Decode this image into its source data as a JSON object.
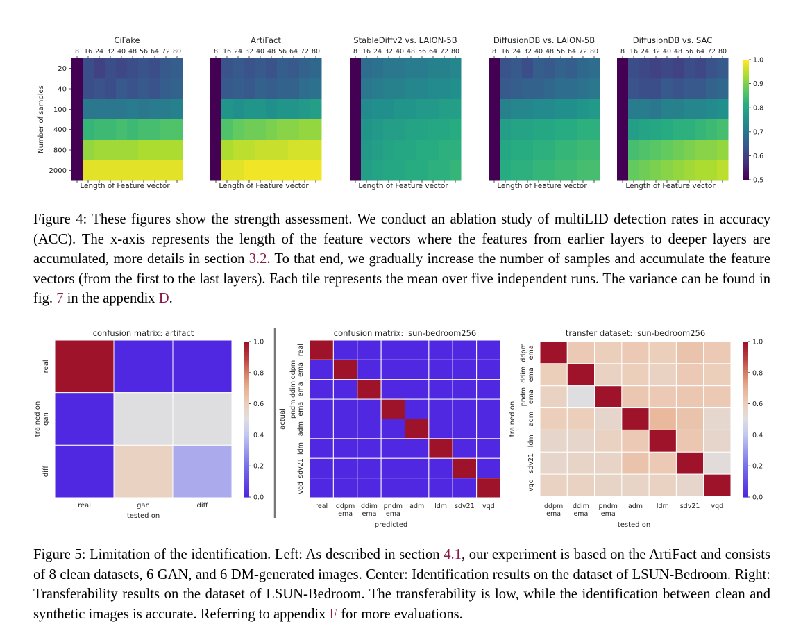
{
  "colors": {
    "link": "#8b1a4a",
    "divider": "#777777"
  },
  "figure4": {
    "colormap": "viridis",
    "y_axis_label": "Number of samples",
    "x_axis_label": "Length of Feature vector",
    "colorbar_ticks": [
      "1.0",
      "0.9",
      "0.8",
      "0.7",
      "0.6",
      "0.5"
    ],
    "caption": {
      "text1": "Figure 4: These figures show the strength assessment. We conduct an ablation study of multiLID detection rates in accuracy (ACC). The x-axis represents the length of the feature vectors where the features from earlier layers to deeper layers are accumulated, more details in section ",
      "ref1": "3.2",
      "text2": ". To that end, we gradually increase the number of samples and accumulate the feature vectors (from the first to the last layers). Each tile represents the mean over five independent runs. The variance can be found in fig. ",
      "ref2": "7",
      "text3": " in the appendix ",
      "ref3": "D",
      "text4": "."
    }
  },
  "figure5": {
    "caption": {
      "text1": "Figure 5: Limitation of the identification. Left: As described in section ",
      "ref1": "4.1",
      "text2": ", our experiment is based on the ArtiFact and consists of 8 clean datasets, 6 GAN, and 6 DM-generated images. Center: Identification results on the dataset of LSUN-Bedroom. Right: Transferability results on the dataset of LSUN-Bedroom. The transferability is low, while the identification between clean and synthetic images is accurate. Referring to appendix ",
      "ref2": "F",
      "text3": " for more evaluations."
    }
  },
  "chart_data": [
    {
      "type": "heatmap",
      "title": "CiFake",
      "x": [
        "8",
        "16",
        "24",
        "32",
        "40",
        "48",
        "56",
        "64",
        "72",
        "80"
      ],
      "y": [
        "20",
        "40",
        "100",
        "400",
        "800",
        "2000"
      ],
      "values": [
        [
          0.5,
          0.62,
          0.6,
          0.62,
          0.61,
          0.62,
          0.63,
          0.62,
          0.64,
          0.65
        ],
        [
          0.5,
          0.62,
          0.63,
          0.62,
          0.64,
          0.63,
          0.64,
          0.63,
          0.65,
          0.66
        ],
        [
          0.5,
          0.7,
          0.7,
          0.7,
          0.7,
          0.71,
          0.7,
          0.71,
          0.71,
          0.72
        ],
        [
          0.5,
          0.83,
          0.84,
          0.84,
          0.85,
          0.84,
          0.85,
          0.85,
          0.86,
          0.86
        ],
        [
          0.5,
          0.92,
          0.93,
          0.93,
          0.93,
          0.93,
          0.94,
          0.94,
          0.94,
          0.94
        ],
        [
          0.5,
          0.98,
          0.98,
          0.98,
          0.98,
          0.98,
          0.98,
          0.98,
          0.98,
          0.98
        ]
      ],
      "xlabel": "Length of Feature vector",
      "ylabel": "Number of samples",
      "vmin": 0.5,
      "vmax": 1.0
    },
    {
      "type": "heatmap",
      "title": "ArtiFact",
      "x": [
        "8",
        "16",
        "24",
        "32",
        "40",
        "48",
        "56",
        "64",
        "72",
        "80"
      ],
      "y": [
        "20",
        "40",
        "100",
        "400",
        "800",
        "2000"
      ],
      "values": [
        [
          0.5,
          0.63,
          0.64,
          0.63,
          0.64,
          0.63,
          0.65,
          0.64,
          0.66,
          0.67
        ],
        [
          0.5,
          0.64,
          0.65,
          0.64,
          0.66,
          0.65,
          0.66,
          0.66,
          0.68,
          0.69
        ],
        [
          0.5,
          0.76,
          0.75,
          0.76,
          0.76,
          0.75,
          0.76,
          0.76,
          0.77,
          0.78
        ],
        [
          0.5,
          0.86,
          0.88,
          0.89,
          0.89,
          0.9,
          0.91,
          0.91,
          0.92,
          0.92
        ],
        [
          0.5,
          0.94,
          0.95,
          0.95,
          0.96,
          0.96,
          0.96,
          0.97,
          0.97,
          0.97
        ],
        [
          0.5,
          0.98,
          0.98,
          0.99,
          0.99,
          0.99,
          0.99,
          0.99,
          0.99,
          0.99
        ]
      ],
      "xlabel": "Length of Feature vector",
      "vmin": 0.5,
      "vmax": 1.0
    },
    {
      "type": "heatmap",
      "title": "StableDiffv2 vs. LAION-5B",
      "x": [
        "8",
        "16",
        "24",
        "32",
        "40",
        "48",
        "56",
        "64",
        "72",
        "80"
      ],
      "y": [
        "20",
        "40",
        "100",
        "400",
        "800",
        "2000"
      ],
      "values": [
        [
          0.5,
          0.68,
          0.69,
          0.7,
          0.7,
          0.71,
          0.71,
          0.72,
          0.72,
          0.73
        ],
        [
          0.5,
          0.7,
          0.71,
          0.72,
          0.72,
          0.73,
          0.73,
          0.74,
          0.74,
          0.75
        ],
        [
          0.5,
          0.74,
          0.75,
          0.75,
          0.76,
          0.76,
          0.77,
          0.77,
          0.78,
          0.78
        ],
        [
          0.5,
          0.76,
          0.77,
          0.78,
          0.78,
          0.79,
          0.79,
          0.8,
          0.8,
          0.81
        ],
        [
          0.5,
          0.77,
          0.78,
          0.79,
          0.8,
          0.8,
          0.81,
          0.81,
          0.82,
          0.82
        ],
        [
          0.5,
          0.78,
          0.79,
          0.8,
          0.8,
          0.81,
          0.81,
          0.82,
          0.82,
          0.83
        ]
      ],
      "xlabel": "Length of Feature vector",
      "vmin": 0.5,
      "vmax": 1.0
    },
    {
      "type": "heatmap",
      "title": "DiffusionDB vs. LAION-5B",
      "x": [
        "8",
        "16",
        "24",
        "32",
        "40",
        "48",
        "56",
        "64",
        "72",
        "80"
      ],
      "y": [
        "20",
        "40",
        "100",
        "400",
        "800",
        "2000"
      ],
      "values": [
        [
          0.5,
          0.63,
          0.64,
          0.62,
          0.65,
          0.64,
          0.66,
          0.65,
          0.67,
          0.68
        ],
        [
          0.5,
          0.64,
          0.65,
          0.66,
          0.66,
          0.67,
          0.68,
          0.68,
          0.69,
          0.7
        ],
        [
          0.5,
          0.72,
          0.73,
          0.73,
          0.74,
          0.74,
          0.75,
          0.75,
          0.76,
          0.77
        ],
        [
          0.5,
          0.78,
          0.79,
          0.79,
          0.8,
          0.8,
          0.81,
          0.81,
          0.82,
          0.82
        ],
        [
          0.5,
          0.8,
          0.81,
          0.81,
          0.82,
          0.82,
          0.83,
          0.83,
          0.84,
          0.84
        ],
        [
          0.5,
          0.81,
          0.82,
          0.82,
          0.83,
          0.83,
          0.84,
          0.84,
          0.85,
          0.85
        ]
      ],
      "xlabel": "Length of Feature vector",
      "vmin": 0.5,
      "vmax": 1.0
    },
    {
      "type": "heatmap",
      "title": "DiffusionDB vs. SAC",
      "x": [
        "8",
        "16",
        "24",
        "32",
        "40",
        "48",
        "56",
        "64",
        "72",
        "80"
      ],
      "y": [
        "20",
        "40",
        "100",
        "400",
        "800",
        "2000"
      ],
      "values": [
        [
          0.5,
          0.62,
          0.61,
          0.6,
          0.61,
          0.6,
          0.62,
          0.61,
          0.63,
          0.64
        ],
        [
          0.5,
          0.63,
          0.62,
          0.62,
          0.64,
          0.63,
          0.64,
          0.64,
          0.66,
          0.67
        ],
        [
          0.5,
          0.71,
          0.71,
          0.7,
          0.72,
          0.72,
          0.73,
          0.73,
          0.74,
          0.75
        ],
        [
          0.5,
          0.78,
          0.79,
          0.8,
          0.81,
          0.82,
          0.82,
          0.83,
          0.84,
          0.85
        ],
        [
          0.5,
          0.85,
          0.86,
          0.87,
          0.88,
          0.89,
          0.9,
          0.91,
          0.91,
          0.92
        ],
        [
          0.5,
          0.88,
          0.89,
          0.9,
          0.91,
          0.92,
          0.93,
          0.94,
          0.94,
          0.95
        ]
      ],
      "xlabel": "Length of Feature vector",
      "vmin": 0.5,
      "vmax": 1.0
    },
    {
      "type": "heatmap",
      "title": "confusion matrix: artifact",
      "colormap": "coolwarm",
      "x": [
        "real",
        "gan",
        "diff"
      ],
      "y": [
        "real",
        "gan",
        "diff"
      ],
      "values": [
        [
          1.0,
          0.0,
          0.0
        ],
        [
          0.0,
          0.5,
          0.5
        ],
        [
          0.0,
          0.58,
          0.33
        ]
      ],
      "xlabel": "tested on",
      "ylabel": "trained on",
      "vmin": 0.0,
      "vmax": 1.0,
      "colorbar_ticks": [
        "1.0",
        "0.8",
        "0.6",
        "0.4",
        "0.2",
        "0.0"
      ]
    },
    {
      "type": "heatmap",
      "title": "confusion matrix: lsun-bedroom256",
      "colormap": "coolwarm",
      "x": [
        "real",
        "ddpm ema",
        "ddim ema",
        "pndm ema",
        "adm",
        "ldm",
        "sdv21",
        "vqd"
      ],
      "y": [
        "real",
        "ddpm ema",
        "ddim ema",
        "pndm ema",
        "adm",
        "ldm",
        "sdv21",
        "vqd"
      ],
      "values": [
        [
          1,
          0,
          0,
          0,
          0,
          0,
          0,
          0
        ],
        [
          0,
          1,
          0,
          0,
          0,
          0,
          0,
          0
        ],
        [
          0,
          0,
          1,
          0,
          0,
          0,
          0,
          0
        ],
        [
          0,
          0,
          0,
          1,
          0,
          0,
          0,
          0
        ],
        [
          0,
          0,
          0,
          0,
          1,
          0,
          0,
          0
        ],
        [
          0,
          0,
          0,
          0,
          0,
          1,
          0,
          0
        ],
        [
          0,
          0,
          0,
          0,
          0,
          0,
          1,
          0
        ],
        [
          0,
          0,
          0,
          0,
          0,
          0,
          0,
          1
        ]
      ],
      "xlabel": "predicted",
      "ylabel": "actual",
      "vmin": 0.0,
      "vmax": 1.0
    },
    {
      "type": "heatmap",
      "title": "transfer dataset: lsun-bedroom256",
      "colormap": "coolwarm",
      "x": [
        "ddpm ema",
        "ddim ema",
        "pndm ema",
        "adm",
        "ldm",
        "sdv21",
        "vqd"
      ],
      "y": [
        "ddpm ema",
        "ddim ema",
        "pndm ema",
        "adm",
        "ldm",
        "sdv21",
        "vqd"
      ],
      "values": [
        [
          1.0,
          0.62,
          0.6,
          0.62,
          0.6,
          0.64,
          0.62
        ],
        [
          0.6,
          1.0,
          0.58,
          0.6,
          0.58,
          0.62,
          0.6
        ],
        [
          0.58,
          0.5,
          1.0,
          0.63,
          0.62,
          0.63,
          0.62
        ],
        [
          0.6,
          0.6,
          0.56,
          1.0,
          0.68,
          0.64,
          0.55
        ],
        [
          0.56,
          0.56,
          0.58,
          0.62,
          1.0,
          0.63,
          0.56
        ],
        [
          0.56,
          0.57,
          0.57,
          0.64,
          0.62,
          1.0,
          0.52
        ],
        [
          0.58,
          0.58,
          0.57,
          0.57,
          0.58,
          0.56,
          1.0
        ]
      ],
      "xlabel": "tested on",
      "ylabel": "trained on",
      "vmin": 0.0,
      "vmax": 1.0,
      "colorbar_ticks": [
        "1.0",
        "0.8",
        "0.6",
        "0.4",
        "0.2",
        "0.0"
      ]
    }
  ]
}
